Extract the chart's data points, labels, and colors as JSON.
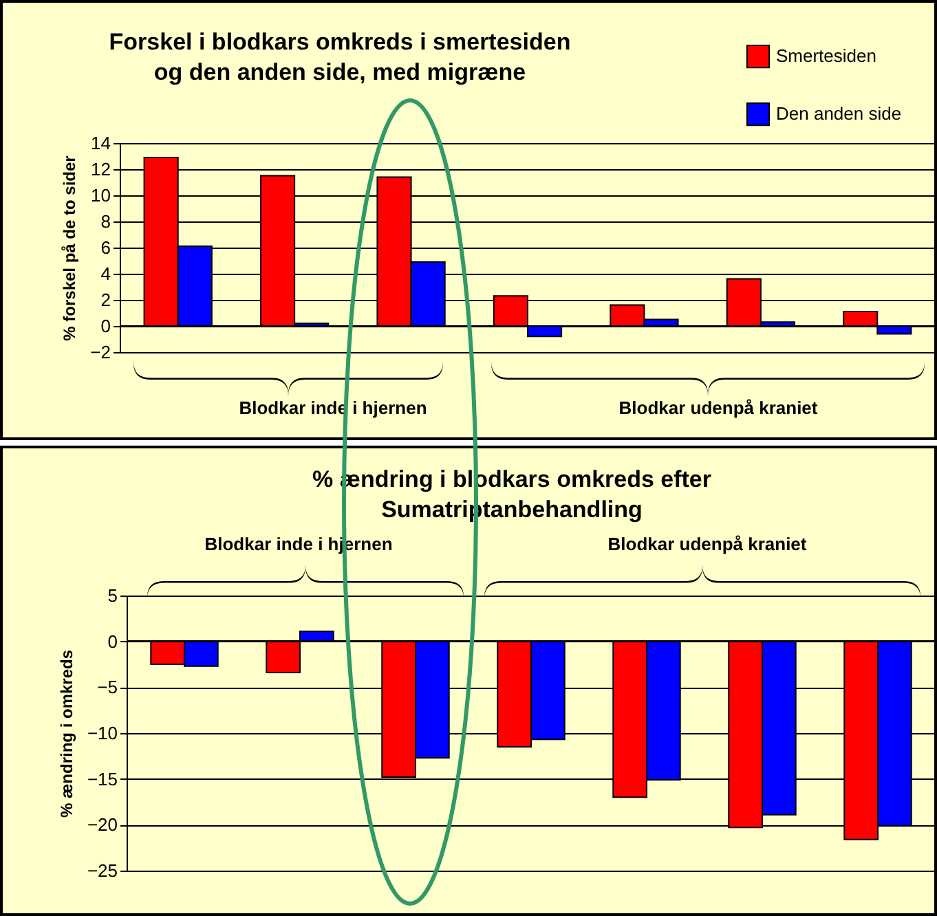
{
  "chart_data": [
    {
      "type": "bar",
      "title": "Forskel i blodkars omkreds i smertesiden\nog den anden side, med migræne",
      "ylabel": "% forskel på de to sider",
      "categories": [
        null,
        null,
        null,
        null,
        null,
        null,
        null
      ],
      "series": [
        {
          "name": "Smertesiden",
          "color": "#ff0000",
          "values": [
            12.9,
            11.5,
            11.4,
            2.3,
            1.6,
            3.6,
            1.1
          ]
        },
        {
          "name": "Den anden side",
          "color": "#0000ff",
          "values": [
            6.1,
            0.2,
            4.9,
            -0.8,
            0.5,
            0.3,
            -0.6
          ]
        }
      ],
      "ylim": [
        -2,
        14
      ],
      "yticks": [
        -2,
        0,
        2,
        4,
        6,
        8,
        10,
        12,
        14
      ],
      "grid": "y",
      "legend": "top right",
      "tick_labels": "y",
      "annotations": [
        "Blodkar inde i hjernen",
        "Blodkar udenpå kraniet"
      ]
    },
    {
      "type": "bar",
      "title": "% ændring i blodkars omkreds efter\nSumatriptanbehandling",
      "ylabel": "% ændring i omkreds",
      "categories": [
        null,
        null,
        null,
        null,
        null,
        null,
        null
      ],
      "series": [
        {
          "color": "#ff0000",
          "values": [
            -2.5,
            -3.4,
            -14.8,
            -11.5,
            -17.0,
            -20.3,
            -21.6
          ]
        },
        {
          "color": "#0000ff",
          "values": [
            -2.7,
            1.1,
            -12.7,
            -10.7,
            -15.1,
            -18.9,
            -20.1
          ]
        }
      ],
      "ylim": [
        -25,
        5
      ],
      "yticks": [
        -25,
        -20,
        -15,
        -10,
        -5,
        0,
        5
      ],
      "grid": "y",
      "tick_labels": "y",
      "annotations": [
        "Blodkar inde i hjernen",
        "Blodkar udenpå kraniet"
      ]
    }
  ]
}
